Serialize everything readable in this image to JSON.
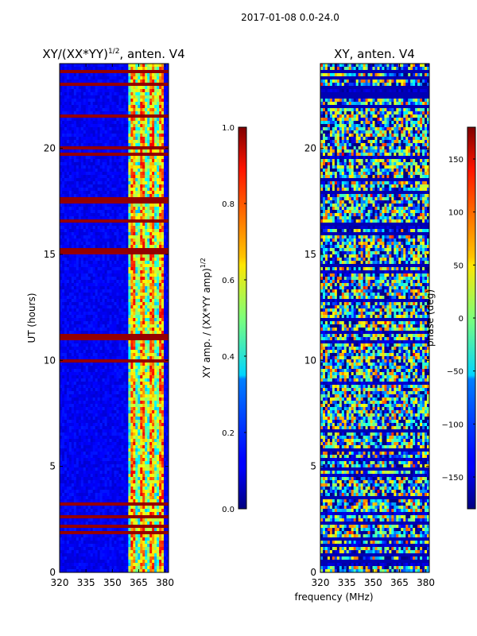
{
  "suptitle": "2017-01-08 0.0-24.0",
  "colors": {
    "background": "#ffffff",
    "frame": "#000000"
  },
  "chart_data": [
    {
      "type": "heatmap",
      "title_main": "XY/(XX*YY)",
      "title_sup": "1/2",
      "title_tail": ", anten. V4",
      "ylabel": "UT (hours)",
      "xlabel": "",
      "xlim": [
        320,
        382
      ],
      "ylim": [
        0,
        24
      ],
      "xticks": [
        "320",
        "335",
        "350",
        "365",
        "380"
      ],
      "xtick_values": [
        320,
        335,
        350,
        365,
        380
      ],
      "yticks": [
        "0",
        "5",
        "10",
        "15",
        "20"
      ],
      "ytick_values": [
        0,
        5,
        10,
        15,
        20
      ],
      "colormap": "jet",
      "colorbar": {
        "label_main": "XY amp. / (XX*YY amp)",
        "label_sup": "1/2",
        "range": [
          0.0,
          1.0
        ],
        "ticks": [
          "0.0",
          "0.2",
          "0.4",
          "0.6",
          "0.8",
          "1.0"
        ],
        "tick_values": [
          0.0,
          0.2,
          0.4,
          0.6,
          0.8,
          1.0
        ]
      }
    },
    {
      "type": "heatmap",
      "title_main": "XY, anten. V4",
      "ylabel": "",
      "xlabel": "frequency (MHz)",
      "xlim": [
        320,
        382
      ],
      "ylim": [
        0,
        24
      ],
      "xticks": [
        "320",
        "335",
        "350",
        "365",
        "380"
      ],
      "xtick_values": [
        320,
        335,
        350,
        365,
        380
      ],
      "yticks": [
        "0",
        "5",
        "10",
        "15",
        "20"
      ],
      "ytick_values": [
        0,
        5,
        10,
        15,
        20
      ],
      "colormap": "jet",
      "colorbar": {
        "label_main": "phase (deg)",
        "range": [
          -180,
          180
        ],
        "ticks": [
          "−150",
          "−100",
          "−50",
          "0",
          "50",
          "100",
          "150"
        ],
        "tick_values": [
          -150,
          -100,
          -50,
          0,
          50,
          100,
          150
        ]
      }
    }
  ]
}
